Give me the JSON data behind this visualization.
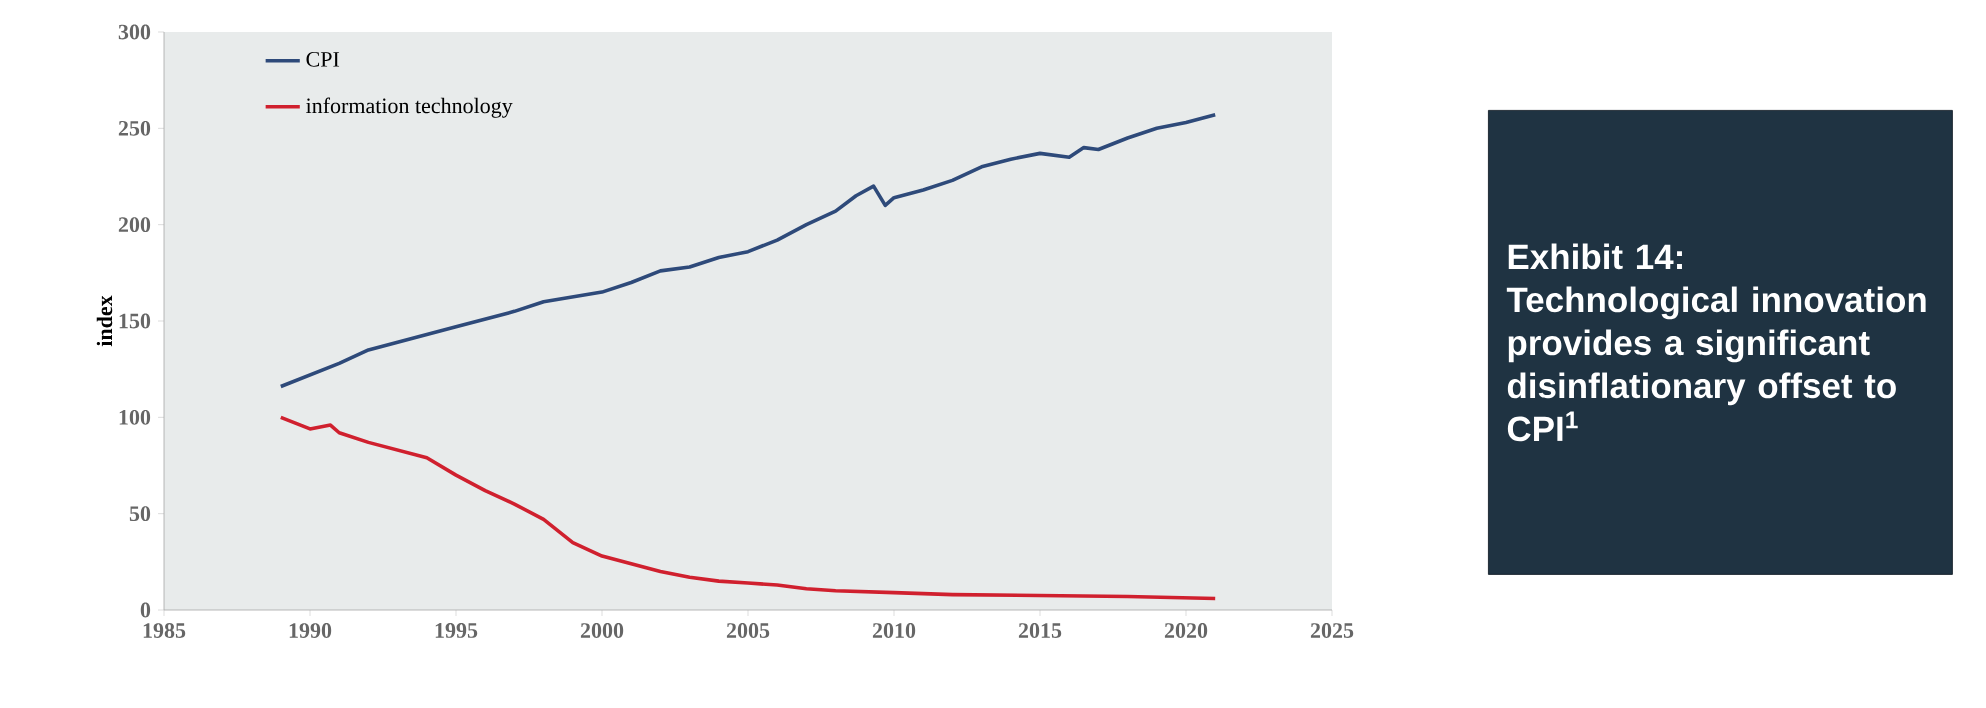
{
  "chart_data": {
    "type": "line",
    "title": "Exhibit 14: Technological innovation provides a significant disinflationary offset to CPI$^{1}$",
    "ylabel": "index",
    "xlim": [
      1985,
      2025
    ],
    "xticks": [
      1985,
      1990,
      1995,
      2000,
      2005,
      2010,
      2015,
      2020,
      2025
    ],
    "ylim": [
      0,
      300
    ],
    "yticks": [
      0,
      50,
      100,
      150,
      200,
      250,
      300
    ],
    "legend": "top left",
    "series": [
      {
        "name": "CPI",
        "color": "#2e4a7a",
        "x": [
          1989,
          1990,
          1991,
          1992,
          1993,
          1995,
          1997,
          1998,
          2000,
          2001,
          2002,
          2003,
          2004,
          2005,
          2006,
          2007,
          2008,
          2008.7,
          2009.3,
          2009.7,
          2010,
          2011,
          2012,
          2013,
          2014,
          2015,
          2015.5,
          2016,
          2016.5,
          2017,
          2018,
          2019,
          2020,
          2021
        ],
        "values": [
          116,
          122,
          128,
          135,
          139,
          147,
          155,
          160,
          165,
          170,
          176,
          178,
          183,
          186,
          192,
          200,
          207,
          215,
          220,
          210,
          214,
          218,
          223,
          230,
          234,
          237,
          236,
          235,
          240,
          239,
          245,
          250,
          253,
          257
        ]
      },
      {
        "name": "information technology",
        "color": "#d0202e",
        "x": [
          1989,
          1989.5,
          1990,
          1990.7,
          1991,
          1992,
          1993,
          1994,
          1995,
          1996,
          1997,
          1998,
          1999,
          2000,
          2001,
          2002,
          2003,
          2004,
          2005,
          2006,
          2007,
          2008,
          2010,
          2012,
          2015,
          2018,
          2021
        ],
        "values": [
          100,
          97,
          94,
          96,
          92,
          87,
          83,
          79,
          70,
          62,
          55,
          47,
          35,
          28,
          24,
          20,
          17,
          15,
          14,
          13,
          11,
          10,
          9,
          8,
          7.5,
          7,
          6
        ]
      }
    ]
  }
}
